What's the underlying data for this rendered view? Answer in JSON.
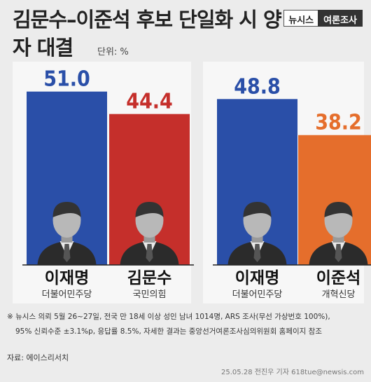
{
  "title": "김문수–이준석 후보 단일화 시 양자 대결",
  "unit": "단위: %",
  "brand": {
    "left": "뉴시스",
    "right": "여론조사"
  },
  "colors": {
    "blue": "#2a4fa8",
    "red": "#c52f2b",
    "orange": "#e56e2c",
    "background": "#ececec"
  },
  "chart_data": [
    {
      "type": "bar",
      "categories": [
        "이재명",
        "김문수"
      ],
      "parties": [
        "더불어민주당",
        "국민의힘"
      ],
      "values": [
        51.0,
        44.4
      ],
      "labels": [
        "51.0",
        "44.4"
      ],
      "colors": [
        "#2a4fa8",
        "#c52f2b"
      ]
    },
    {
      "type": "bar",
      "categories": [
        "이재명",
        "이준석"
      ],
      "parties": [
        "더불어민주당",
        "개혁신당"
      ],
      "values": [
        48.8,
        38.2
      ],
      "labels": [
        "48.8",
        "38.2"
      ],
      "colors": [
        "#2a4fa8",
        "#e56e2c"
      ]
    }
  ],
  "note": {
    "line1": "※ 뉴시스 의뢰 5월 26~27일, 전국 만 18세 이상 성인 남녀 1014명, ARS 조사(무선 가상번호 100%),",
    "line2": "95% 신뢰수준 ±3.1%p, 응답률 8.5%, 자세한 결과는 중앙선거여론조사심의위원회 홈페이지 참조"
  },
  "source": "자료: 에이스리서치",
  "credit": "25.05.28 전진우 기자 618tue@newsis.com"
}
